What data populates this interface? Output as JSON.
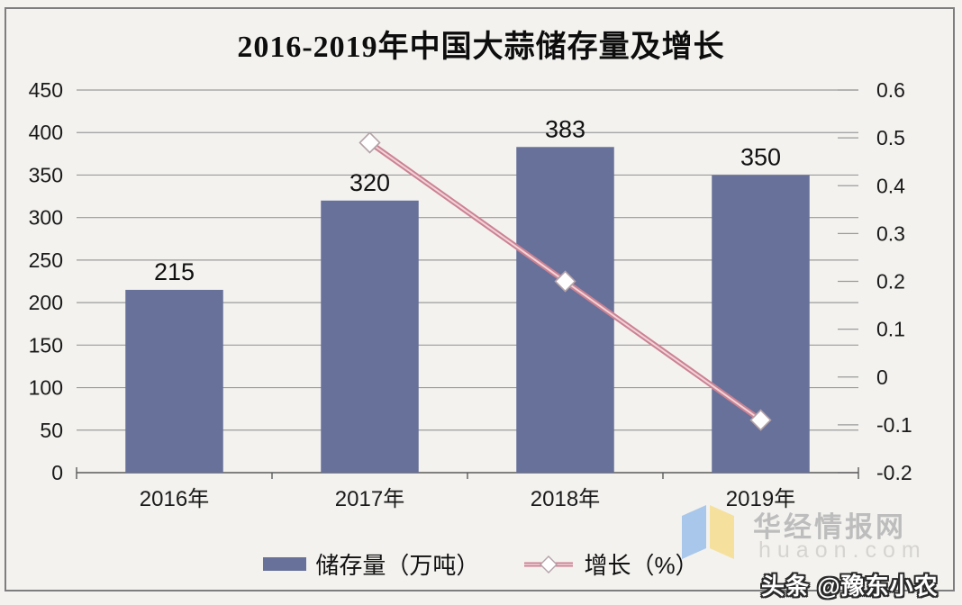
{
  "title": "2016-2019年中国大蒜储存量及增长",
  "chart_data": {
    "type": "bar",
    "subtype": "bar-line-combo",
    "title": "2016-2019年中国大蒜储存量及增长",
    "categories": [
      "2016年",
      "2017年",
      "2018年",
      "2019年"
    ],
    "series": [
      {
        "name": "储存量（万吨）",
        "type": "bar",
        "axis": "left",
        "values": [
          215,
          320,
          383,
          350
        ],
        "labels": [
          "215",
          "320",
          "383",
          "350"
        ],
        "color": "#67719A"
      },
      {
        "name": "增长（%）",
        "type": "line",
        "axis": "right",
        "values": [
          null,
          0.49,
          0.2,
          -0.09
        ],
        "color": "#CC8293",
        "marker": "diamond-white"
      }
    ],
    "left_axis": {
      "min": 0,
      "max": 450,
      "step": 50,
      "ticks": [
        "450",
        "400",
        "350",
        "300",
        "250",
        "200",
        "150",
        "100",
        "50",
        "0"
      ]
    },
    "right_axis": {
      "min": -0.2,
      "max": 0.6,
      "step": 0.1,
      "ticks": [
        "0.6",
        "0.5",
        "0.4",
        "0.3",
        "0.2",
        "0.1",
        "0",
        "-0.1",
        "-0.2"
      ]
    },
    "grid": true,
    "legend_position": "bottom"
  },
  "legend": {
    "items": [
      {
        "label": "储存量（万吨）",
        "swatch": "bar-square"
      },
      {
        "label": "增长（%）",
        "swatch": "line-diamond"
      }
    ]
  },
  "watermark": {
    "site_name": "华经情报网",
    "site_url": "huaon.com",
    "credit": "头条 @豫东小农",
    "logo": "open-book-logo"
  },
  "colors": {
    "bar": "#67719A",
    "line": "#CC8293",
    "line_highlight": "#F1D3D8",
    "marker_fill": "#FFFFFF",
    "marker_stroke": "#B3A2A8",
    "gridline": "#9B9B9B",
    "axis_line": "#5A5A5A",
    "axis_text": "#1A1A1A",
    "background": "#F3F2EF",
    "logo_blue": "#A9C7EA",
    "logo_yellow": "#F6E09E"
  }
}
